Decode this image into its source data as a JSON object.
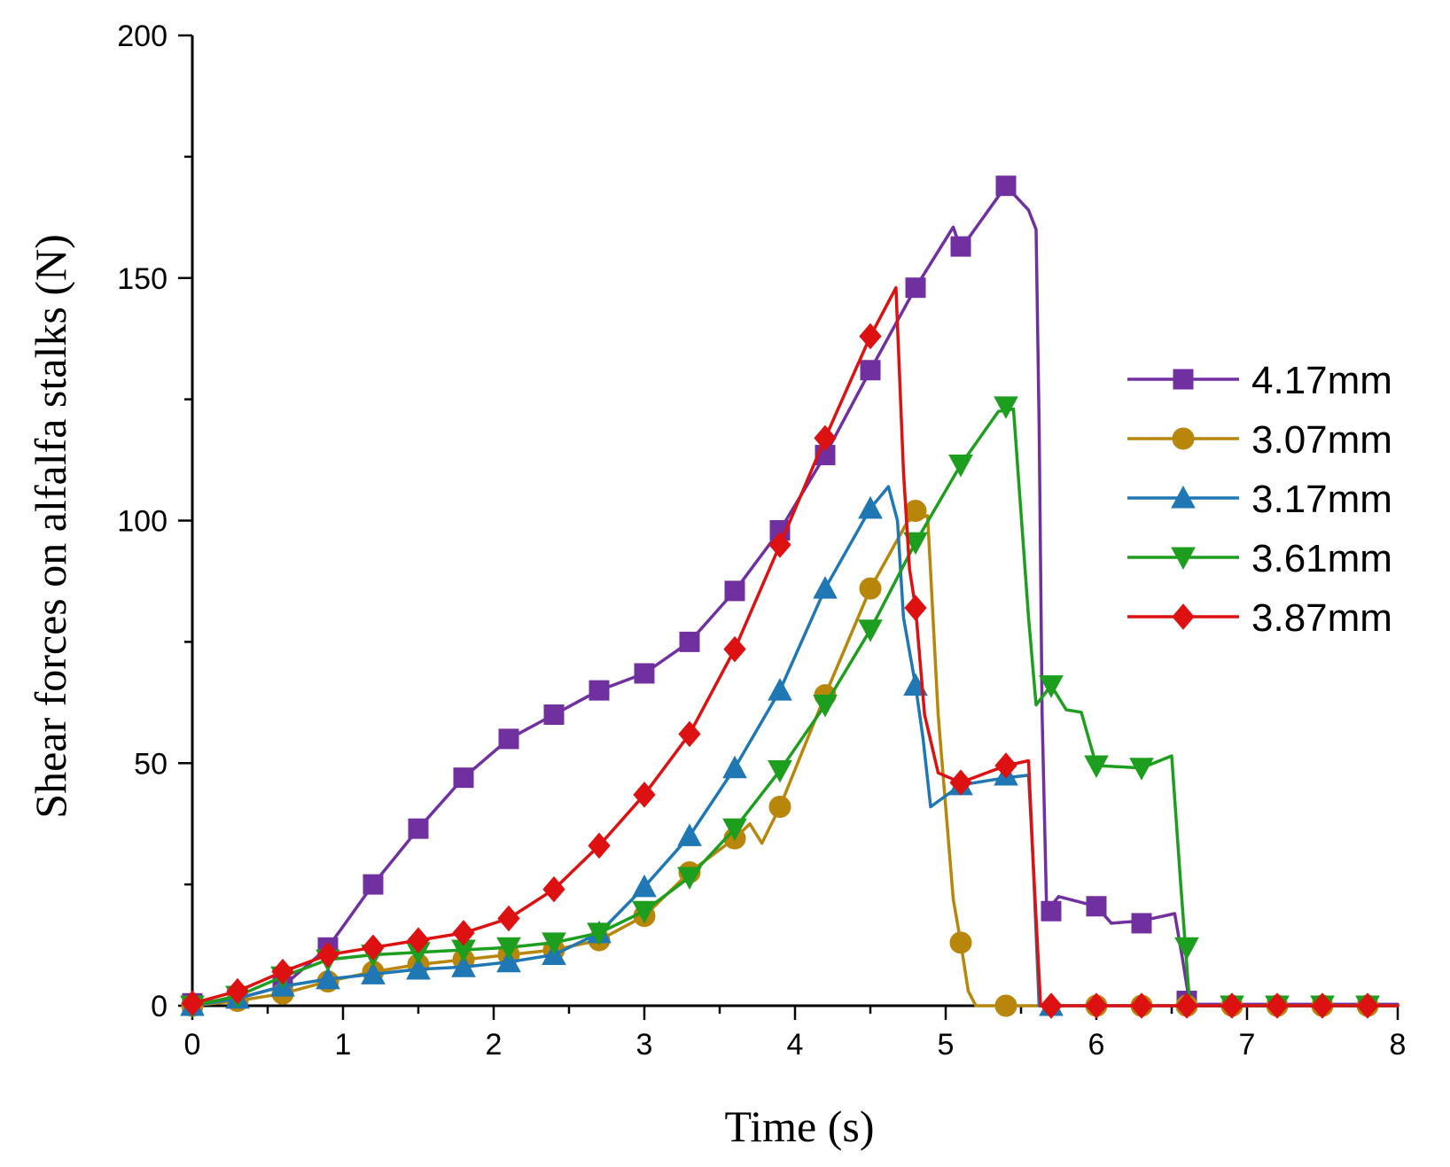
{
  "chart_data": {
    "type": "line",
    "title": "",
    "xlabel": "Time (s)",
    "ylabel": "Shear forces on alfalfa stalks (N)",
    "xlim": [
      0,
      8
    ],
    "ylim": [
      0,
      200
    ],
    "xticks": [
      0,
      1,
      2,
      3,
      4,
      5,
      6,
      7,
      8
    ],
    "yticks": [
      0,
      50,
      100,
      150,
      200
    ],
    "grid": false,
    "legend_position": "right",
    "series": [
      {
        "name": "4.17mm",
        "color": "#7030A0",
        "marker": "square",
        "line": [
          [
            0,
            0.5
          ],
          [
            0.3,
            1.5
          ],
          [
            0.6,
            4
          ],
          [
            0.9,
            12
          ],
          [
            1.2,
            25
          ],
          [
            1.5,
            36.5
          ],
          [
            1.8,
            47
          ],
          [
            2.1,
            55
          ],
          [
            2.4,
            60
          ],
          [
            2.7,
            65
          ],
          [
            3.0,
            68.5
          ],
          [
            3.3,
            75
          ],
          [
            3.6,
            85.5
          ],
          [
            3.9,
            98
          ],
          [
            4.2,
            113.5
          ],
          [
            4.5,
            131
          ],
          [
            4.8,
            148
          ],
          [
            5.05,
            160.5
          ],
          [
            5.1,
            156
          ],
          [
            5.4,
            169
          ],
          [
            5.55,
            164
          ],
          [
            5.6,
            160
          ],
          [
            5.62,
            120
          ],
          [
            5.64,
            60
          ],
          [
            5.67,
            19.5
          ],
          [
            5.75,
            22.5
          ],
          [
            6.0,
            20.5
          ],
          [
            6.1,
            17
          ],
          [
            6.3,
            17.5
          ],
          [
            6.52,
            19
          ],
          [
            6.57,
            10
          ],
          [
            6.62,
            0.3
          ],
          [
            8.0,
            0.3
          ]
        ],
        "markers": [
          [
            0,
            0.5
          ],
          [
            0.3,
            1.5
          ],
          [
            0.6,
            4
          ],
          [
            0.9,
            12
          ],
          [
            1.2,
            25
          ],
          [
            1.5,
            36.5
          ],
          [
            1.8,
            47
          ],
          [
            2.1,
            55
          ],
          [
            2.4,
            60
          ],
          [
            2.7,
            65
          ],
          [
            3.0,
            68.5
          ],
          [
            3.3,
            75
          ],
          [
            3.6,
            85.5
          ],
          [
            3.9,
            98
          ],
          [
            4.2,
            113.5
          ],
          [
            4.5,
            131
          ],
          [
            4.8,
            148
          ],
          [
            5.1,
            156.5
          ],
          [
            5.4,
            169
          ],
          [
            5.7,
            19.5
          ],
          [
            6.0,
            20.5
          ],
          [
            6.3,
            17
          ],
          [
            6.6,
            1
          ]
        ]
      },
      {
        "name": "3.07mm",
        "color": "#B8860B",
        "marker": "circle",
        "line": [
          [
            0,
            0
          ],
          [
            0.3,
            1
          ],
          [
            0.6,
            2.5
          ],
          [
            0.9,
            5
          ],
          [
            1.2,
            7
          ],
          [
            1.5,
            8.5
          ],
          [
            1.8,
            9.5
          ],
          [
            2.1,
            10.5
          ],
          [
            2.4,
            11.5
          ],
          [
            2.7,
            13.5
          ],
          [
            3.0,
            18.5
          ],
          [
            3.3,
            27.5
          ],
          [
            3.6,
            34.5
          ],
          [
            3.7,
            37.5
          ],
          [
            3.78,
            33.5
          ],
          [
            3.9,
            41
          ],
          [
            4.2,
            64
          ],
          [
            4.5,
            86
          ],
          [
            4.75,
            100
          ],
          [
            4.88,
            101
          ],
          [
            4.95,
            60
          ],
          [
            5.05,
            22
          ],
          [
            5.1,
            13
          ],
          [
            5.15,
            3
          ],
          [
            5.2,
            0
          ],
          [
            8.0,
            0
          ]
        ],
        "markers": [
          [
            0,
            0
          ],
          [
            0.3,
            1
          ],
          [
            0.6,
            2.5
          ],
          [
            0.9,
            5
          ],
          [
            1.2,
            7
          ],
          [
            1.5,
            8.5
          ],
          [
            1.8,
            9.5
          ],
          [
            2.1,
            10.5
          ],
          [
            2.4,
            11.5
          ],
          [
            2.7,
            13.5
          ],
          [
            3.0,
            18.5
          ],
          [
            3.3,
            27.5
          ],
          [
            3.6,
            34.5
          ],
          [
            3.9,
            41
          ],
          [
            4.2,
            64
          ],
          [
            4.5,
            86
          ],
          [
            4.8,
            102
          ],
          [
            5.1,
            13
          ],
          [
            5.4,
            0
          ],
          [
            6.0,
            0
          ],
          [
            6.3,
            0
          ],
          [
            6.6,
            0
          ],
          [
            6.9,
            0
          ],
          [
            7.2,
            0
          ],
          [
            7.5,
            0
          ],
          [
            7.8,
            0
          ]
        ]
      },
      {
        "name": "3.17mm",
        "color": "#1F77B4",
        "marker": "triangle-up",
        "line": [
          [
            0,
            0
          ],
          [
            0.3,
            1.5
          ],
          [
            0.6,
            4
          ],
          [
            0.9,
            5.5
          ],
          [
            1.2,
            6.5
          ],
          [
            1.5,
            7.5
          ],
          [
            1.8,
            8
          ],
          [
            2.1,
            9
          ],
          [
            2.4,
            10.5
          ],
          [
            2.7,
            15
          ],
          [
            3.0,
            24.5
          ],
          [
            3.3,
            35
          ],
          [
            3.6,
            49
          ],
          [
            3.9,
            65
          ],
          [
            4.2,
            86
          ],
          [
            4.5,
            102.5
          ],
          [
            4.62,
            107
          ],
          [
            4.68,
            100
          ],
          [
            4.72,
            80
          ],
          [
            4.8,
            66
          ],
          [
            4.85,
            55
          ],
          [
            4.9,
            41
          ],
          [
            5.1,
            45.5
          ],
          [
            5.4,
            47
          ],
          [
            5.55,
            47.5
          ],
          [
            5.58,
            30
          ],
          [
            5.62,
            0
          ],
          [
            8.0,
            0
          ]
        ],
        "markers": [
          [
            0,
            0
          ],
          [
            0.3,
            1.5
          ],
          [
            0.6,
            4
          ],
          [
            0.9,
            5.5
          ],
          [
            1.2,
            6.5
          ],
          [
            1.5,
            7.5
          ],
          [
            1.8,
            8
          ],
          [
            2.1,
            9
          ],
          [
            2.4,
            10.5
          ],
          [
            2.7,
            15
          ],
          [
            3.0,
            24.5
          ],
          [
            3.3,
            35
          ],
          [
            3.6,
            49
          ],
          [
            3.9,
            65
          ],
          [
            4.2,
            86
          ],
          [
            4.5,
            102.5
          ],
          [
            4.8,
            66
          ],
          [
            5.1,
            45.5
          ],
          [
            5.4,
            47.5
          ],
          [
            5.7,
            0
          ]
        ]
      },
      {
        "name": "3.61mm",
        "color": "#1E9E1E",
        "marker": "triangle-down",
        "line": [
          [
            0,
            0
          ],
          [
            0.3,
            2
          ],
          [
            0.6,
            6
          ],
          [
            0.9,
            9.5
          ],
          [
            1.2,
            10.5
          ],
          [
            1.5,
            11
          ],
          [
            1.8,
            11.5
          ],
          [
            2.1,
            12
          ],
          [
            2.4,
            13
          ],
          [
            2.7,
            15
          ],
          [
            3.0,
            19.5
          ],
          [
            3.3,
            26.5
          ],
          [
            3.6,
            36.5
          ],
          [
            3.9,
            48.5
          ],
          [
            4.2,
            62
          ],
          [
            4.5,
            77.5
          ],
          [
            4.8,
            95.5
          ],
          [
            5.1,
            111.5
          ],
          [
            5.35,
            122.5
          ],
          [
            5.45,
            123
          ],
          [
            5.55,
            80
          ],
          [
            5.6,
            62
          ],
          [
            5.7,
            66
          ],
          [
            5.8,
            61
          ],
          [
            5.9,
            60.5
          ],
          [
            6.0,
            49.5
          ],
          [
            6.3,
            49
          ],
          [
            6.5,
            51.5
          ],
          [
            6.56,
            25
          ],
          [
            6.62,
            0
          ],
          [
            8.0,
            0
          ]
        ],
        "markers": [
          [
            0,
            0
          ],
          [
            0.3,
            2
          ],
          [
            0.6,
            6
          ],
          [
            0.9,
            9.5
          ],
          [
            1.2,
            10.5
          ],
          [
            1.5,
            11
          ],
          [
            1.8,
            11.5
          ],
          [
            2.1,
            12
          ],
          [
            2.4,
            13
          ],
          [
            2.7,
            15
          ],
          [
            3.0,
            19.5
          ],
          [
            3.3,
            26.5
          ],
          [
            3.6,
            36.5
          ],
          [
            3.9,
            48.5
          ],
          [
            4.2,
            62
          ],
          [
            4.5,
            77.5
          ],
          [
            4.8,
            95.5
          ],
          [
            5.1,
            111.5
          ],
          [
            5.4,
            123.5
          ],
          [
            5.7,
            66
          ],
          [
            6.0,
            49.5
          ],
          [
            6.3,
            49
          ],
          [
            6.6,
            12
          ],
          [
            6.9,
            0
          ],
          [
            7.2,
            0
          ],
          [
            7.5,
            0
          ],
          [
            7.8,
            0
          ]
        ]
      },
      {
        "name": "3.87mm",
        "color": "#DD1111",
        "marker": "diamond",
        "line": [
          [
            0,
            0.5
          ],
          [
            0.3,
            3
          ],
          [
            0.6,
            7
          ],
          [
            0.9,
            10.5
          ],
          [
            1.2,
            12
          ],
          [
            1.5,
            13.5
          ],
          [
            1.8,
            15
          ],
          [
            2.1,
            18
          ],
          [
            2.4,
            24
          ],
          [
            2.7,
            33
          ],
          [
            3.0,
            43.5
          ],
          [
            3.3,
            56
          ],
          [
            3.6,
            73.5
          ],
          [
            3.9,
            95
          ],
          [
            4.2,
            117
          ],
          [
            4.5,
            138
          ],
          [
            4.67,
            148
          ],
          [
            4.72,
            110
          ],
          [
            4.76,
            90
          ],
          [
            4.8,
            82
          ],
          [
            4.86,
            60
          ],
          [
            4.95,
            48
          ],
          [
            5.1,
            46
          ],
          [
            5.4,
            49.5
          ],
          [
            5.55,
            50.5
          ],
          [
            5.58,
            30
          ],
          [
            5.63,
            0
          ],
          [
            8.0,
            0
          ]
        ],
        "markers": [
          [
            0,
            0.5
          ],
          [
            0.3,
            3
          ],
          [
            0.6,
            7
          ],
          [
            0.9,
            10.5
          ],
          [
            1.2,
            12
          ],
          [
            1.5,
            13.5
          ],
          [
            1.8,
            15
          ],
          [
            2.1,
            18
          ],
          [
            2.4,
            24
          ],
          [
            2.7,
            33
          ],
          [
            3.0,
            43.5
          ],
          [
            3.3,
            56
          ],
          [
            3.6,
            73.5
          ],
          [
            3.9,
            95
          ],
          [
            4.2,
            117
          ],
          [
            4.5,
            138
          ],
          [
            4.8,
            82
          ],
          [
            5.1,
            46
          ],
          [
            5.4,
            49.5
          ],
          [
            5.7,
            0
          ],
          [
            6.0,
            0
          ],
          [
            6.3,
            0
          ],
          [
            6.6,
            0
          ],
          [
            6.9,
            0
          ],
          [
            7.2,
            0
          ],
          [
            7.5,
            0
          ],
          [
            7.8,
            0
          ]
        ]
      }
    ]
  }
}
